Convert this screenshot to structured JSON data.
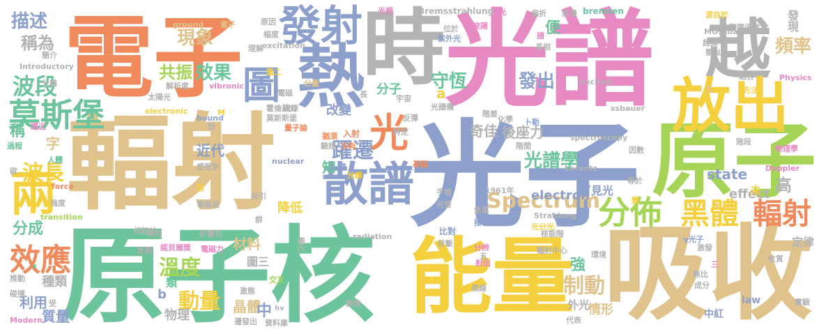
{
  "palette": {
    "orange": "#f08a5d",
    "tan": "#e0c38c",
    "green": "#6cc49c",
    "lime": "#a6d456",
    "yellow": "#f4d03f",
    "blue": "#8da0cb",
    "pink": "#e78ac3",
    "gray": "#b3b3b3"
  },
  "words": [
    {
      "text": "電子",
      "color": "orange"
    },
    {
      "text": "輻射",
      "color": "tan"
    },
    {
      "text": "光譜",
      "color": "pink"
    },
    {
      "text": "光子",
      "color": "blue"
    },
    {
      "text": "原子核",
      "color": "green"
    },
    {
      "text": "吸收",
      "color": "tan"
    },
    {
      "text": "能量",
      "color": "yellow"
    },
    {
      "text": "時",
      "color": "gray"
    },
    {
      "text": "原子",
      "color": "lime"
    },
    {
      "text": "越",
      "color": "gray"
    },
    {
      "text": "熱",
      "color": "blue"
    },
    {
      "text": "放出",
      "color": "yellow"
    },
    {
      "text": "發射",
      "color": "blue"
    },
    {
      "text": "散譜",
      "color": "blue"
    },
    {
      "text": "兩",
      "color": "yellow"
    },
    {
      "text": "分佈",
      "color": "lime"
    },
    {
      "text": "黑體",
      "color": "yellow"
    },
    {
      "text": "輻射",
      "color": "orange"
    },
    {
      "text": "莫斯堡",
      "color": "green"
    },
    {
      "text": "效應",
      "color": "orange"
    },
    {
      "text": "光",
      "color": "orange"
    },
    {
      "text": "圖",
      "color": "blue"
    },
    {
      "text": "Spectrum",
      "color": "tan"
    },
    {
      "text": "波段",
      "color": "green"
    },
    {
      "text": "波長",
      "color": "yellow"
    },
    {
      "text": "躍遷",
      "color": "blue"
    },
    {
      "text": "溫度",
      "color": "lime"
    },
    {
      "text": "動量",
      "color": "yellow"
    },
    {
      "text": "制動",
      "color": "tan"
    },
    {
      "text": "頻率",
      "color": "tan"
    },
    {
      "text": "描述",
      "color": "blue"
    },
    {
      "text": "現象",
      "color": "tan"
    },
    {
      "text": "效果",
      "color": "green"
    },
    {
      "text": "共振",
      "color": "lime"
    },
    {
      "text": "守恆",
      "color": "green"
    },
    {
      "text": "發出",
      "color": "blue"
    },
    {
      "text": "光譜學",
      "color": "green"
    },
    {
      "text": "發現",
      "color": "gray"
    },
    {
      "text": "稱為",
      "color": "gray"
    },
    {
      "text": "便",
      "color": "green"
    },
    {
      "text": "分子",
      "color": "green"
    },
    {
      "text": "後座力",
      "color": "gray"
    },
    {
      "text": "奇佳",
      "color": "gray"
    },
    {
      "text": "改變",
      "color": "blue"
    },
    {
      "text": "state",
      "color": "blue"
    },
    {
      "text": "effect",
      "color": "gray"
    },
    {
      "text": "electron",
      "color": "blue"
    },
    {
      "text": "高",
      "color": "gray"
    },
    {
      "text": "近代",
      "color": "blue"
    },
    {
      "text": "稱",
      "color": "green"
    },
    {
      "text": "字",
      "color": "tan"
    },
    {
      "text": "知",
      "color": "green"
    },
    {
      "text": "分成",
      "color": "green"
    },
    {
      "text": "種類",
      "color": "gray"
    },
    {
      "text": "利用",
      "color": "blue"
    },
    {
      "text": "質量",
      "color": "blue"
    },
    {
      "text": "物理",
      "color": "gray"
    },
    {
      "text": "晶體",
      "color": "tan"
    },
    {
      "text": "中",
      "color": "blue"
    },
    {
      "text": "情形",
      "color": "tan"
    },
    {
      "text": "外光",
      "color": "gray"
    },
    {
      "text": "強",
      "color": "green"
    },
    {
      "text": "材料",
      "color": "tan"
    },
    {
      "text": "降低",
      "color": "yellow"
    },
    {
      "text": "a",
      "color": "yellow"
    },
    {
      "text": "b",
      "color": "blue"
    },
    {
      "text": "類",
      "color": "green"
    },
    {
      "text": "圖三",
      "color": "gray"
    },
    {
      "text": "可見光",
      "color": "blue"
    },
    {
      "text": "未",
      "color": "yellow"
    },
    {
      "text": "定律",
      "color": "gray"
    },
    {
      "text": "中紅",
      "color": "blue"
    },
    {
      "text": "law",
      "color": "blue"
    },
    {
      "text": "Bremsstrahlung",
      "color": "gray"
    },
    {
      "text": "bremsen",
      "color": "green"
    },
    {
      "text": "MÖssbauer",
      "color": "gray"
    },
    {
      "text": "Physics",
      "color": "pink"
    },
    {
      "text": "Introductory",
      "color": "gray"
    },
    {
      "text": "vibronic",
      "color": "pink"
    },
    {
      "text": "excitation",
      "color": "gray"
    },
    {
      "text": "ground",
      "color": "tan"
    },
    {
      "text": "electronic",
      "color": "yellow"
    },
    {
      "text": "spectroscopy",
      "color": "gray"
    },
    {
      "text": "excited",
      "color": "gray"
    },
    {
      "text": "ssbauer",
      "color": "gray"
    },
    {
      "text": "nuclear",
      "color": "blue"
    },
    {
      "text": "bound",
      "color": "blue"
    },
    {
      "text": "transition",
      "color": "lime"
    },
    {
      "text": "force",
      "color": "orange"
    },
    {
      "text": "Lorentz",
      "color": "gray"
    },
    {
      "text": "Doppler",
      "color": "pink"
    },
    {
      "text": "radiation",
      "color": "gray"
    },
    {
      "text": "Strahlung",
      "color": "gray"
    },
    {
      "text": "Modern",
      "color": "pink"
    },
    {
      "text": "1961年",
      "color": "gray"
    },
    {
      "text": "ΔE",
      "color": "blue"
    },
    {
      "text": "γ光子",
      "color": "blue"
    },
    {
      "text": "γ光",
      "color": "pink"
    },
    {
      "text": "光柵",
      "color": "pink"
    },
    {
      "text": "偏折",
      "color": "gray"
    },
    {
      "text": "周邊",
      "color": "gray"
    },
    {
      "text": "源自於",
      "color": "yellow"
    },
    {
      "text": "階躍函數",
      "color": "gray"
    },
    {
      "text": "超高",
      "color": "gray"
    },
    {
      "text": "類似",
      "color": "gray"
    },
    {
      "text": "組合",
      "color": "gray"
    },
    {
      "text": "反",
      "color": "tan"
    },
    {
      "text": "方法",
      "color": "yellow"
    },
    {
      "text": "物理學",
      "color": "pink"
    },
    {
      "text": "階段",
      "color": "gray"
    },
    {
      "text": "因數",
      "color": "gray"
    },
    {
      "text": "等於",
      "color": "gray"
    },
    {
      "text": "變",
      "color": "yellow"
    },
    {
      "text": "性質",
      "color": "gray"
    },
    {
      "text": "實驗",
      "color": "gray"
    },
    {
      "text": "無比",
      "color": "gray"
    },
    {
      "text": "成分",
      "color": "gray"
    },
    {
      "text": "激發",
      "color": "gray"
    },
    {
      "text": "環境",
      "color": "gray"
    },
    {
      "text": "輻射中心",
      "color": "gray"
    },
    {
      "text": "核能階",
      "color": "gray"
    },
    {
      "text": "光分光",
      "color": "yellow"
    },
    {
      "text": "分辨",
      "color": "pink"
    },
    {
      "text": "診斷",
      "color": "gray"
    },
    {
      "text": "比對",
      "color": "blue"
    },
    {
      "text": "接收",
      "color": "blue"
    },
    {
      "text": "氣車",
      "color": "gray"
    },
    {
      "text": "光管",
      "color": "gray"
    },
    {
      "text": "手槍",
      "color": "gray"
    },
    {
      "text": "子彈",
      "color": "blue"
    },
    {
      "text": "來得",
      "color": "blue"
    },
    {
      "text": "階間",
      "color": "gray"
    },
    {
      "text": "化學",
      "color": "gray"
    },
    {
      "text": "階差",
      "color": "gray"
    },
    {
      "text": "卜勒",
      "color": "blue"
    },
    {
      "text": "特定",
      "color": "gray"
    },
    {
      "text": "反彈",
      "color": "gray"
    },
    {
      "text": "光譜儀",
      "color": "gray"
    },
    {
      "text": "宇宙",
      "color": "gray"
    },
    {
      "text": "長",
      "color": "gray"
    },
    {
      "text": "光線",
      "color": "yellow"
    },
    {
      "text": "方向",
      "color": "orange"
    },
    {
      "text": "入射",
      "color": "orange"
    },
    {
      "text": "猶須",
      "color": "orange"
    },
    {
      "text": "驗證",
      "color": "gray"
    },
    {
      "text": "整",
      "color": "blue"
    },
    {
      "text": "基態",
      "color": "orange"
    },
    {
      "text": "量子論",
      "color": "orange"
    },
    {
      "text": "莫斯斯堡",
      "color": "gray"
    },
    {
      "text": "霍倫茲力",
      "color": "gray"
    },
    {
      "text": "分量",
      "color": "tan"
    },
    {
      "text": "譜線",
      "color": "gray"
    },
    {
      "text": "圖二",
      "color": "yellow"
    },
    {
      "text": "電磁",
      "color": "gray"
    },
    {
      "text": "太陽光",
      "color": "gray"
    },
    {
      "text": "解析度",
      "color": "gray"
    },
    {
      "text": "理解",
      "color": "gray"
    },
    {
      "text": "幅度",
      "color": "gray"
    },
    {
      "text": "原因",
      "color": "gray"
    },
    {
      "text": "簡介",
      "color": "gray"
    },
    {
      "text": "分離",
      "color": "gray"
    },
    {
      "text": "套子",
      "color": "tan"
    },
    {
      "text": "恰",
      "color": "gray"
    },
    {
      "text": "M",
      "color": "yellow"
    },
    {
      "text": "趨近",
      "color": "pink"
    },
    {
      "text": "過程",
      "color": "green"
    },
    {
      "text": "欲",
      "color": "gray"
    },
    {
      "text": "人體",
      "color": "green"
    },
    {
      "text": "感受到",
      "color": "gray"
    },
    {
      "text": "強度",
      "color": "gray"
    },
    {
      "text": "階",
      "color": "yellow"
    },
    {
      "text": "電磁波",
      "color": "gray"
    },
    {
      "text": "吸引",
      "color": "gray"
    },
    {
      "text": "群",
      "color": "gray"
    },
    {
      "text": "相較於",
      "color": "gray"
    },
    {
      "text": "研究",
      "color": "gray"
    },
    {
      "text": "影響到",
      "color": "gray"
    },
    {
      "text": "見到",
      "color": "gray"
    },
    {
      "text": "諾貝爾獎",
      "color": "pink"
    },
    {
      "text": "電磁力",
      "color": "pink"
    },
    {
      "text": "推動",
      "color": "gray"
    },
    {
      "text": "碰撞",
      "color": "gray"
    },
    {
      "text": "受",
      "color": "gray"
    },
    {
      "text": "x",
      "color": "green"
    },
    {
      "text": "交叉",
      "color": "lime"
    },
    {
      "text": "激態",
      "color": "gray"
    },
    {
      "text": "遷發出",
      "color": "gray"
    },
    {
      "text": "資料庫",
      "color": "gray"
    },
    {
      "text": "hv",
      "color": "gray"
    },
    {
      "text": "開啟",
      "color": "gray"
    },
    {
      "text": "圖六",
      "color": "gray"
    },
    {
      "text": "黑線",
      "color": "gray"
    },
    {
      "text": "代表",
      "color": "gray"
    },
    {
      "text": "射出",
      "color": "pink"
    },
    {
      "text": "五",
      "color": "gray"
    },
    {
      "text": "三",
      "color": "pink"
    },
    {
      "text": "位於",
      "color": "gray"
    },
    {
      "text": "紫外光",
      "color": "blue"
    },
    {
      "text": "波陽",
      "color": "pink"
    },
    {
      "text": "長相",
      "color": "gray"
    },
    {
      "text": "譜",
      "color": "pink"
    }
  ]
}
